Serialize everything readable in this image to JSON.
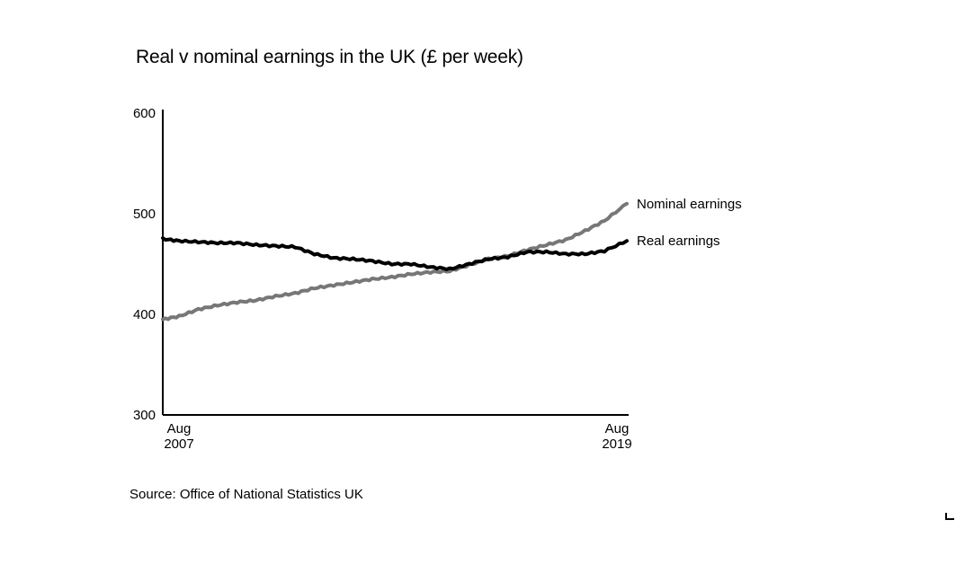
{
  "chart_data": {
    "type": "line",
    "title": "Real v nominal earnings in the UK (£ per week)",
    "xlabel": "",
    "ylabel": "",
    "x_ticks": [
      {
        "top": "Aug",
        "bottom": "2007"
      },
      {
        "top": "Aug",
        "bottom": "2019"
      }
    ],
    "x_range": [
      2007.58,
      2019.58
    ],
    "yticks": [
      300,
      400,
      500,
      600
    ],
    "ylim": [
      300,
      600
    ],
    "grid": false,
    "series": [
      {
        "name": "Nominal earnings",
        "color": "#777777",
        "x": [
          2007.58,
          2008.0,
          2008.5,
          2009.0,
          2009.5,
          2010.0,
          2010.5,
          2011.0,
          2011.5,
          2012.0,
          2012.5,
          2013.0,
          2013.5,
          2014.0,
          2014.5,
          2015.0,
          2015.5,
          2016.0,
          2016.5,
          2017.0,
          2017.5,
          2018.0,
          2018.5,
          2019.0,
          2019.58
        ],
        "values": [
          395,
          398,
          405,
          409,
          412,
          414,
          418,
          421,
          426,
          429,
          432,
          435,
          437,
          440,
          442,
          443,
          449,
          455,
          458,
          464,
          469,
          474,
          483,
          493,
          510
        ]
      },
      {
        "name": "Real earnings",
        "color": "#000000",
        "x": [
          2007.58,
          2008.0,
          2008.5,
          2009.0,
          2009.5,
          2010.0,
          2010.5,
          2011.0,
          2011.5,
          2012.0,
          2012.5,
          2013.0,
          2013.5,
          2014.0,
          2014.5,
          2015.0,
          2015.5,
          2016.0,
          2016.5,
          2017.0,
          2017.5,
          2018.0,
          2018.5,
          2019.0,
          2019.58
        ],
        "values": [
          475,
          473,
          472,
          471,
          471,
          469,
          468,
          467,
          460,
          456,
          455,
          453,
          450,
          450,
          447,
          445,
          450,
          455,
          457,
          462,
          462,
          460,
          460,
          463,
          473
        ]
      }
    ]
  },
  "source": "Source: Office of National Statistics UK"
}
